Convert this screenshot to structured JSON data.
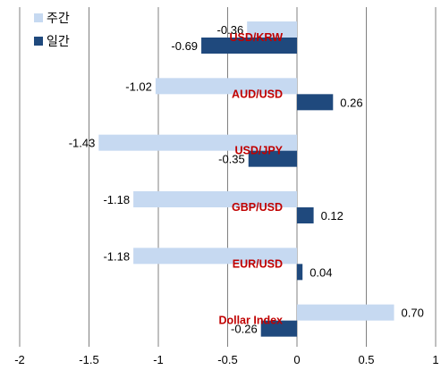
{
  "chart_data": {
    "type": "bar",
    "orientation": "horizontal",
    "categories": [
      "USD/KRW",
      "AUD/USD",
      "USD/JPY",
      "GBP/USD",
      "EUR/USD",
      "Dollar Index"
    ],
    "series": [
      {
        "name": "주간",
        "values": [
          -0.36,
          -1.02,
          -1.43,
          -1.18,
          -1.18,
          0.7
        ],
        "color": "#c6d9f1"
      },
      {
        "name": "일간",
        "values": [
          -0.69,
          0.26,
          -0.35,
          0.12,
          0.04,
          -0.26
        ],
        "color": "#1f497d"
      }
    ],
    "data_labels": {
      "주간": [
        "-0.36",
        "-1.02",
        "-1.43",
        "-1.18",
        "-1.18",
        "0.70"
      ],
      "일간": [
        "-0.69",
        "0.26",
        "-0.35",
        "0.12",
        "0.04",
        "-0.26"
      ]
    },
    "xlim": [
      -2,
      1
    ],
    "x_ticks": [
      "-2",
      "-1.5",
      "-1",
      "-0.5",
      "0",
      "0.5",
      "1"
    ],
    "grid": "vertical",
    "legend_position": "top-left",
    "category_label_color": "#c00000"
  }
}
